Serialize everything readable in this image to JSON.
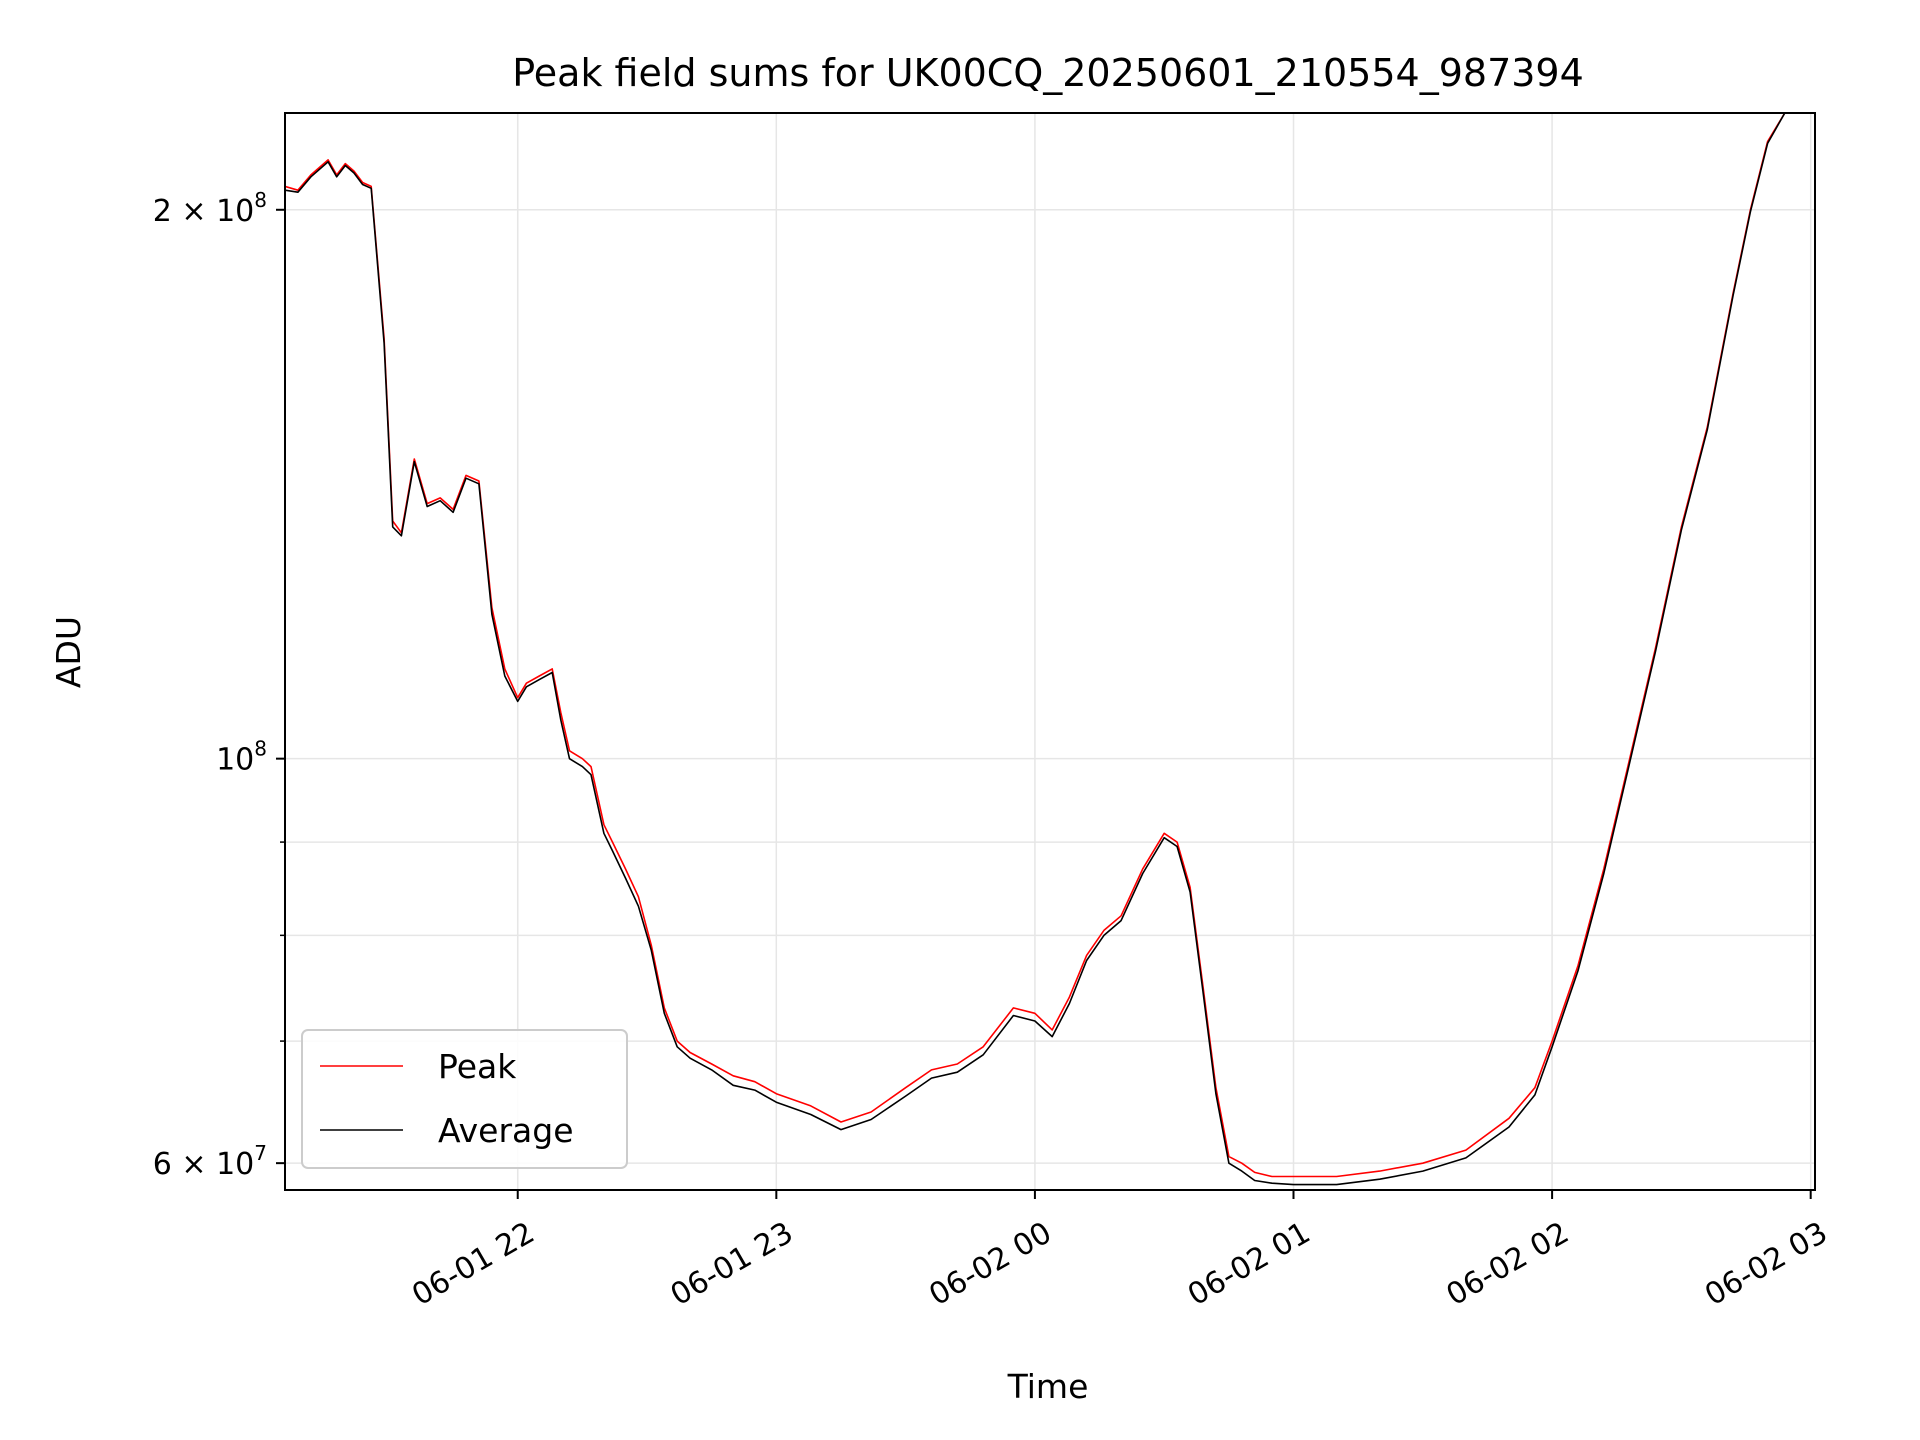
{
  "chart_data": {
    "type": "line",
    "title": "Peak field sums for UK00CQ_20250601_210554_987394",
    "xlabel": "Time",
    "ylabel": "ADU",
    "yscale": "log",
    "xlim": [
      "06-01 21:06",
      "06-02 03:01"
    ],
    "ylim": [
      58000000,
      226000000
    ],
    "grid": true,
    "legend_position": "lower-left",
    "x_ticks": [
      {
        "value": "06-01 22:00",
        "label": "06-01 22"
      },
      {
        "value": "06-01 23:00",
        "label": "06-01 23"
      },
      {
        "value": "06-02 00:00",
        "label": "06-02 00"
      },
      {
        "value": "06-02 01:00",
        "label": "06-02 01"
      },
      {
        "value": "06-02 02:00",
        "label": "06-02 02"
      },
      {
        "value": "06-02 03:00",
        "label": "06-02 03"
      }
    ],
    "y_ticks": [
      {
        "value": 200000000,
        "mantissa": "2",
        "times": "×",
        "base": "10",
        "exp": "8"
      },
      {
        "value": 100000000,
        "mantissa": "",
        "times": "",
        "base": "10",
        "exp": "8"
      },
      {
        "value": 60000000,
        "mantissa": "6",
        "times": "×",
        "base": "10",
        "exp": "7"
      }
    ],
    "y_minor_ticks": [
      70000000,
      80000000,
      90000000
    ],
    "series": [
      {
        "name": "Peak",
        "color": "#ff0000",
        "x": [
          "06-01 21:06",
          "06-01 21:09",
          "06-01 21:12",
          "06-01 21:14",
          "06-01 21:16",
          "06-01 21:18",
          "06-01 21:20",
          "06-01 21:22",
          "06-01 21:24",
          "06-01 21:26",
          "06-01 21:29",
          "06-01 21:31",
          "06-01 21:33",
          "06-01 21:36",
          "06-01 21:39",
          "06-01 21:42",
          "06-01 21:45",
          "06-01 21:48",
          "06-01 21:51",
          "06-01 21:54",
          "06-01 21:57",
          "06-01 22:00",
          "06-01 22:02",
          "06-01 22:05",
          "06-01 22:08",
          "06-01 22:10",
          "06-01 22:12",
          "06-01 22:15",
          "06-01 22:17",
          "06-01 22:20",
          "06-01 22:22",
          "06-01 22:25",
          "06-01 22:28",
          "06-01 22:31",
          "06-01 22:34",
          "06-01 22:37",
          "06-01 22:40",
          "06-01 22:45",
          "06-01 22:50",
          "06-01 22:55",
          "06-01 23:00",
          "06-01 23:08",
          "06-01 23:15",
          "06-01 23:22",
          "06-01 23:30",
          "06-01 23:36",
          "06-01 23:42",
          "06-01 23:48",
          "06-01 23:55",
          "06-02 00:00",
          "06-02 00:04",
          "06-02 00:08",
          "06-02 00:12",
          "06-02 00:16",
          "06-02 00:20",
          "06-02 00:25",
          "06-02 00:30",
          "06-02 00:33",
          "06-02 00:36",
          "06-02 00:39",
          "06-02 00:42",
          "06-02 00:45",
          "06-02 00:48",
          "06-02 00:51",
          "06-02 00:55",
          "06-02 01:00",
          "06-02 01:10",
          "06-02 01:20",
          "06-02 01:30",
          "06-02 01:40",
          "06-02 01:50",
          "06-02 01:56",
          "06-02 02:00",
          "06-02 02:06",
          "06-02 02:12",
          "06-02 02:18",
          "06-02 02:24",
          "06-02 02:30",
          "06-02 02:36",
          "06-02 02:42",
          "06-02 02:46",
          "06-02 02:50",
          "06-02 02:54",
          "06-02 03:01"
        ],
        "values": [
          206000000,
          205000000,
          209000000,
          211000000,
          213000000,
          209000000,
          212000000,
          210000000,
          207000000,
          206000000,
          170000000,
          135000000,
          133000000,
          146000000,
          138000000,
          139000000,
          137000000,
          143000000,
          142000000,
          121000000,
          112000000,
          108000000,
          110000000,
          111000000,
          112000000,
          106000000,
          101000000,
          100000000,
          99000000,
          92000000,
          90000000,
          87000000,
          84000000,
          79000000,
          73000000,
          70000000,
          69000000,
          68000000,
          67000000,
          66500000,
          65500000,
          64500000,
          63200000,
          64000000,
          66000000,
          67500000,
          68000000,
          69500000,
          73000000,
          72500000,
          71000000,
          74000000,
          78000000,
          80500000,
          82000000,
          87000000,
          91000000,
          90000000,
          85000000,
          75000000,
          66000000,
          60500000,
          60000000,
          59300000,
          59000000,
          59000000,
          59000000,
          59400000,
          60000000,
          61000000,
          63500000,
          66000000,
          70000000,
          77000000,
          87000000,
          100000000,
          115000000,
          134000000,
          152000000,
          180000000,
          200000000,
          218000000,
          226000000,
          226000000
        ]
      },
      {
        "name": "Average",
        "color": "#000000",
        "x": [
          "06-01 21:06",
          "06-01 21:09",
          "06-01 21:12",
          "06-01 21:14",
          "06-01 21:16",
          "06-01 21:18",
          "06-01 21:20",
          "06-01 21:22",
          "06-01 21:24",
          "06-01 21:26",
          "06-01 21:29",
          "06-01 21:31",
          "06-01 21:33",
          "06-01 21:36",
          "06-01 21:39",
          "06-01 21:42",
          "06-01 21:45",
          "06-01 21:48",
          "06-01 21:51",
          "06-01 21:54",
          "06-01 21:57",
          "06-01 22:00",
          "06-01 22:02",
          "06-01 22:05",
          "06-01 22:08",
          "06-01 22:10",
          "06-01 22:12",
          "06-01 22:15",
          "06-01 22:17",
          "06-01 22:20",
          "06-01 22:22",
          "06-01 22:25",
          "06-01 22:28",
          "06-01 22:31",
          "06-01 22:34",
          "06-01 22:37",
          "06-01 22:40",
          "06-01 22:45",
          "06-01 22:50",
          "06-01 22:55",
          "06-01 23:00",
          "06-01 23:08",
          "06-01 23:15",
          "06-01 23:22",
          "06-01 23:30",
          "06-01 23:36",
          "06-01 23:42",
          "06-01 23:48",
          "06-01 23:55",
          "06-02 00:00",
          "06-02 00:04",
          "06-02 00:08",
          "06-02 00:12",
          "06-02 00:16",
          "06-02 00:20",
          "06-02 00:25",
          "06-02 00:30",
          "06-02 00:33",
          "06-02 00:36",
          "06-02 00:39",
          "06-02 00:42",
          "06-02 00:45",
          "06-02 00:48",
          "06-02 00:51",
          "06-02 00:55",
          "06-02 01:00",
          "06-02 01:10",
          "06-02 01:20",
          "06-02 01:30",
          "06-02 01:40",
          "06-02 01:50",
          "06-02 01:56",
          "06-02 02:00",
          "06-02 02:06",
          "06-02 02:12",
          "06-02 02:18",
          "06-02 02:24",
          "06-02 02:30",
          "06-02 02:36",
          "06-02 02:42",
          "06-02 02:46",
          "06-02 02:50",
          "06-02 02:54",
          "06-02 03:01"
        ],
        "values": [
          205000000,
          204500000,
          208500000,
          210500000,
          212500000,
          208500000,
          211500000,
          209500000,
          206500000,
          205500000,
          169000000,
          134000000,
          132500000,
          145500000,
          137500000,
          138500000,
          136500000,
          142500000,
          141500000,
          120000000,
          111000000,
          107500000,
          109500000,
          110500000,
          111500000,
          105000000,
          100000000,
          99000000,
          98000000,
          91000000,
          89000000,
          86000000,
          83000000,
          78500000,
          72500000,
          69500000,
          68500000,
          67500000,
          66200000,
          65800000,
          64800000,
          63800000,
          62600000,
          63400000,
          65300000,
          66800000,
          67300000,
          68800000,
          72300000,
          71800000,
          70400000,
          73400000,
          77500000,
          80000000,
          81500000,
          86500000,
          90500000,
          89500000,
          84500000,
          74500000,
          65500000,
          60000000,
          59400000,
          58700000,
          58500000,
          58400000,
          58400000,
          58800000,
          59400000,
          60400000,
          62800000,
          65400000,
          69500000,
          76500000,
          86500000,
          99500000,
          114500000,
          133500000,
          151500000,
          179500000,
          199500000,
          217500000,
          226000000,
          226000000
        ]
      }
    ]
  }
}
